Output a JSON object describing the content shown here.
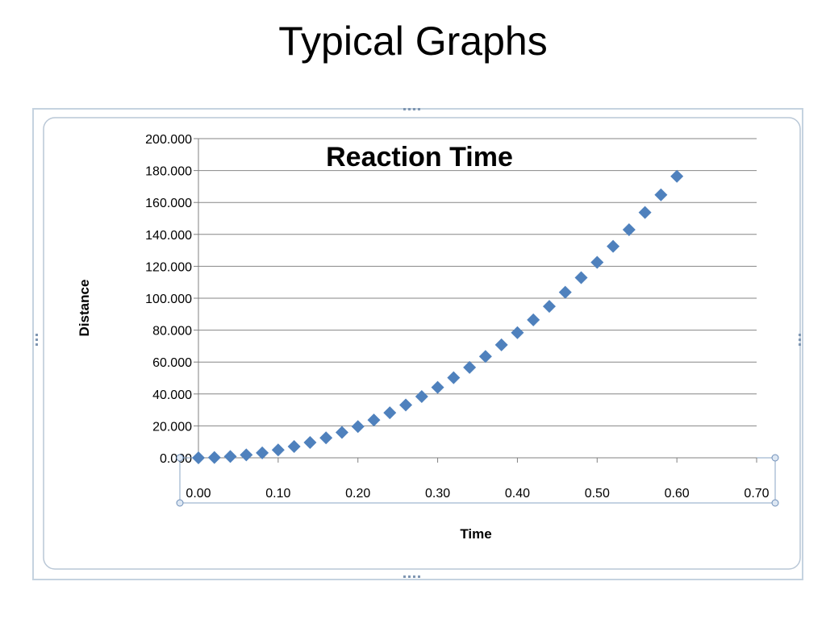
{
  "slide": {
    "title": "Typical Graphs"
  },
  "chart_data": {
    "type": "scatter",
    "title": "Reaction Time",
    "xlabel": "Time",
    "ylabel": "Distance",
    "xlim": [
      0,
      0.7
    ],
    "ylim": [
      0,
      200
    ],
    "x_ticks": [
      "0.00",
      "0.10",
      "0.20",
      "0.30",
      "0.40",
      "0.50",
      "0.60",
      "0.70"
    ],
    "y_ticks": [
      "0.000",
      "20.000",
      "40.000",
      "60.000",
      "80.000",
      "100.000",
      "120.000",
      "140.000",
      "160.000",
      "180.000",
      "200.000"
    ],
    "grid": "horizontal",
    "legend": "none",
    "marker": "diamond",
    "color": "#4F81BD",
    "x": [
      0.0,
      0.02,
      0.04,
      0.06,
      0.08,
      0.1,
      0.12,
      0.14,
      0.16,
      0.18,
      0.2,
      0.22,
      0.24,
      0.26,
      0.28,
      0.3,
      0.32,
      0.34,
      0.36,
      0.38,
      0.4,
      0.42,
      0.44,
      0.46,
      0.48,
      0.5,
      0.52,
      0.54,
      0.56,
      0.58,
      0.6
    ],
    "y": [
      0.0,
      0.2,
      0.8,
      1.8,
      3.1,
      4.9,
      7.1,
      9.6,
      12.5,
      15.9,
      19.6,
      23.7,
      28.2,
      33.1,
      38.4,
      44.1,
      50.2,
      56.6,
      63.5,
      70.8,
      78.4,
      86.4,
      94.9,
      103.7,
      112.9,
      122.5,
      132.5,
      142.9,
      153.7,
      164.8,
      176.4
    ]
  }
}
